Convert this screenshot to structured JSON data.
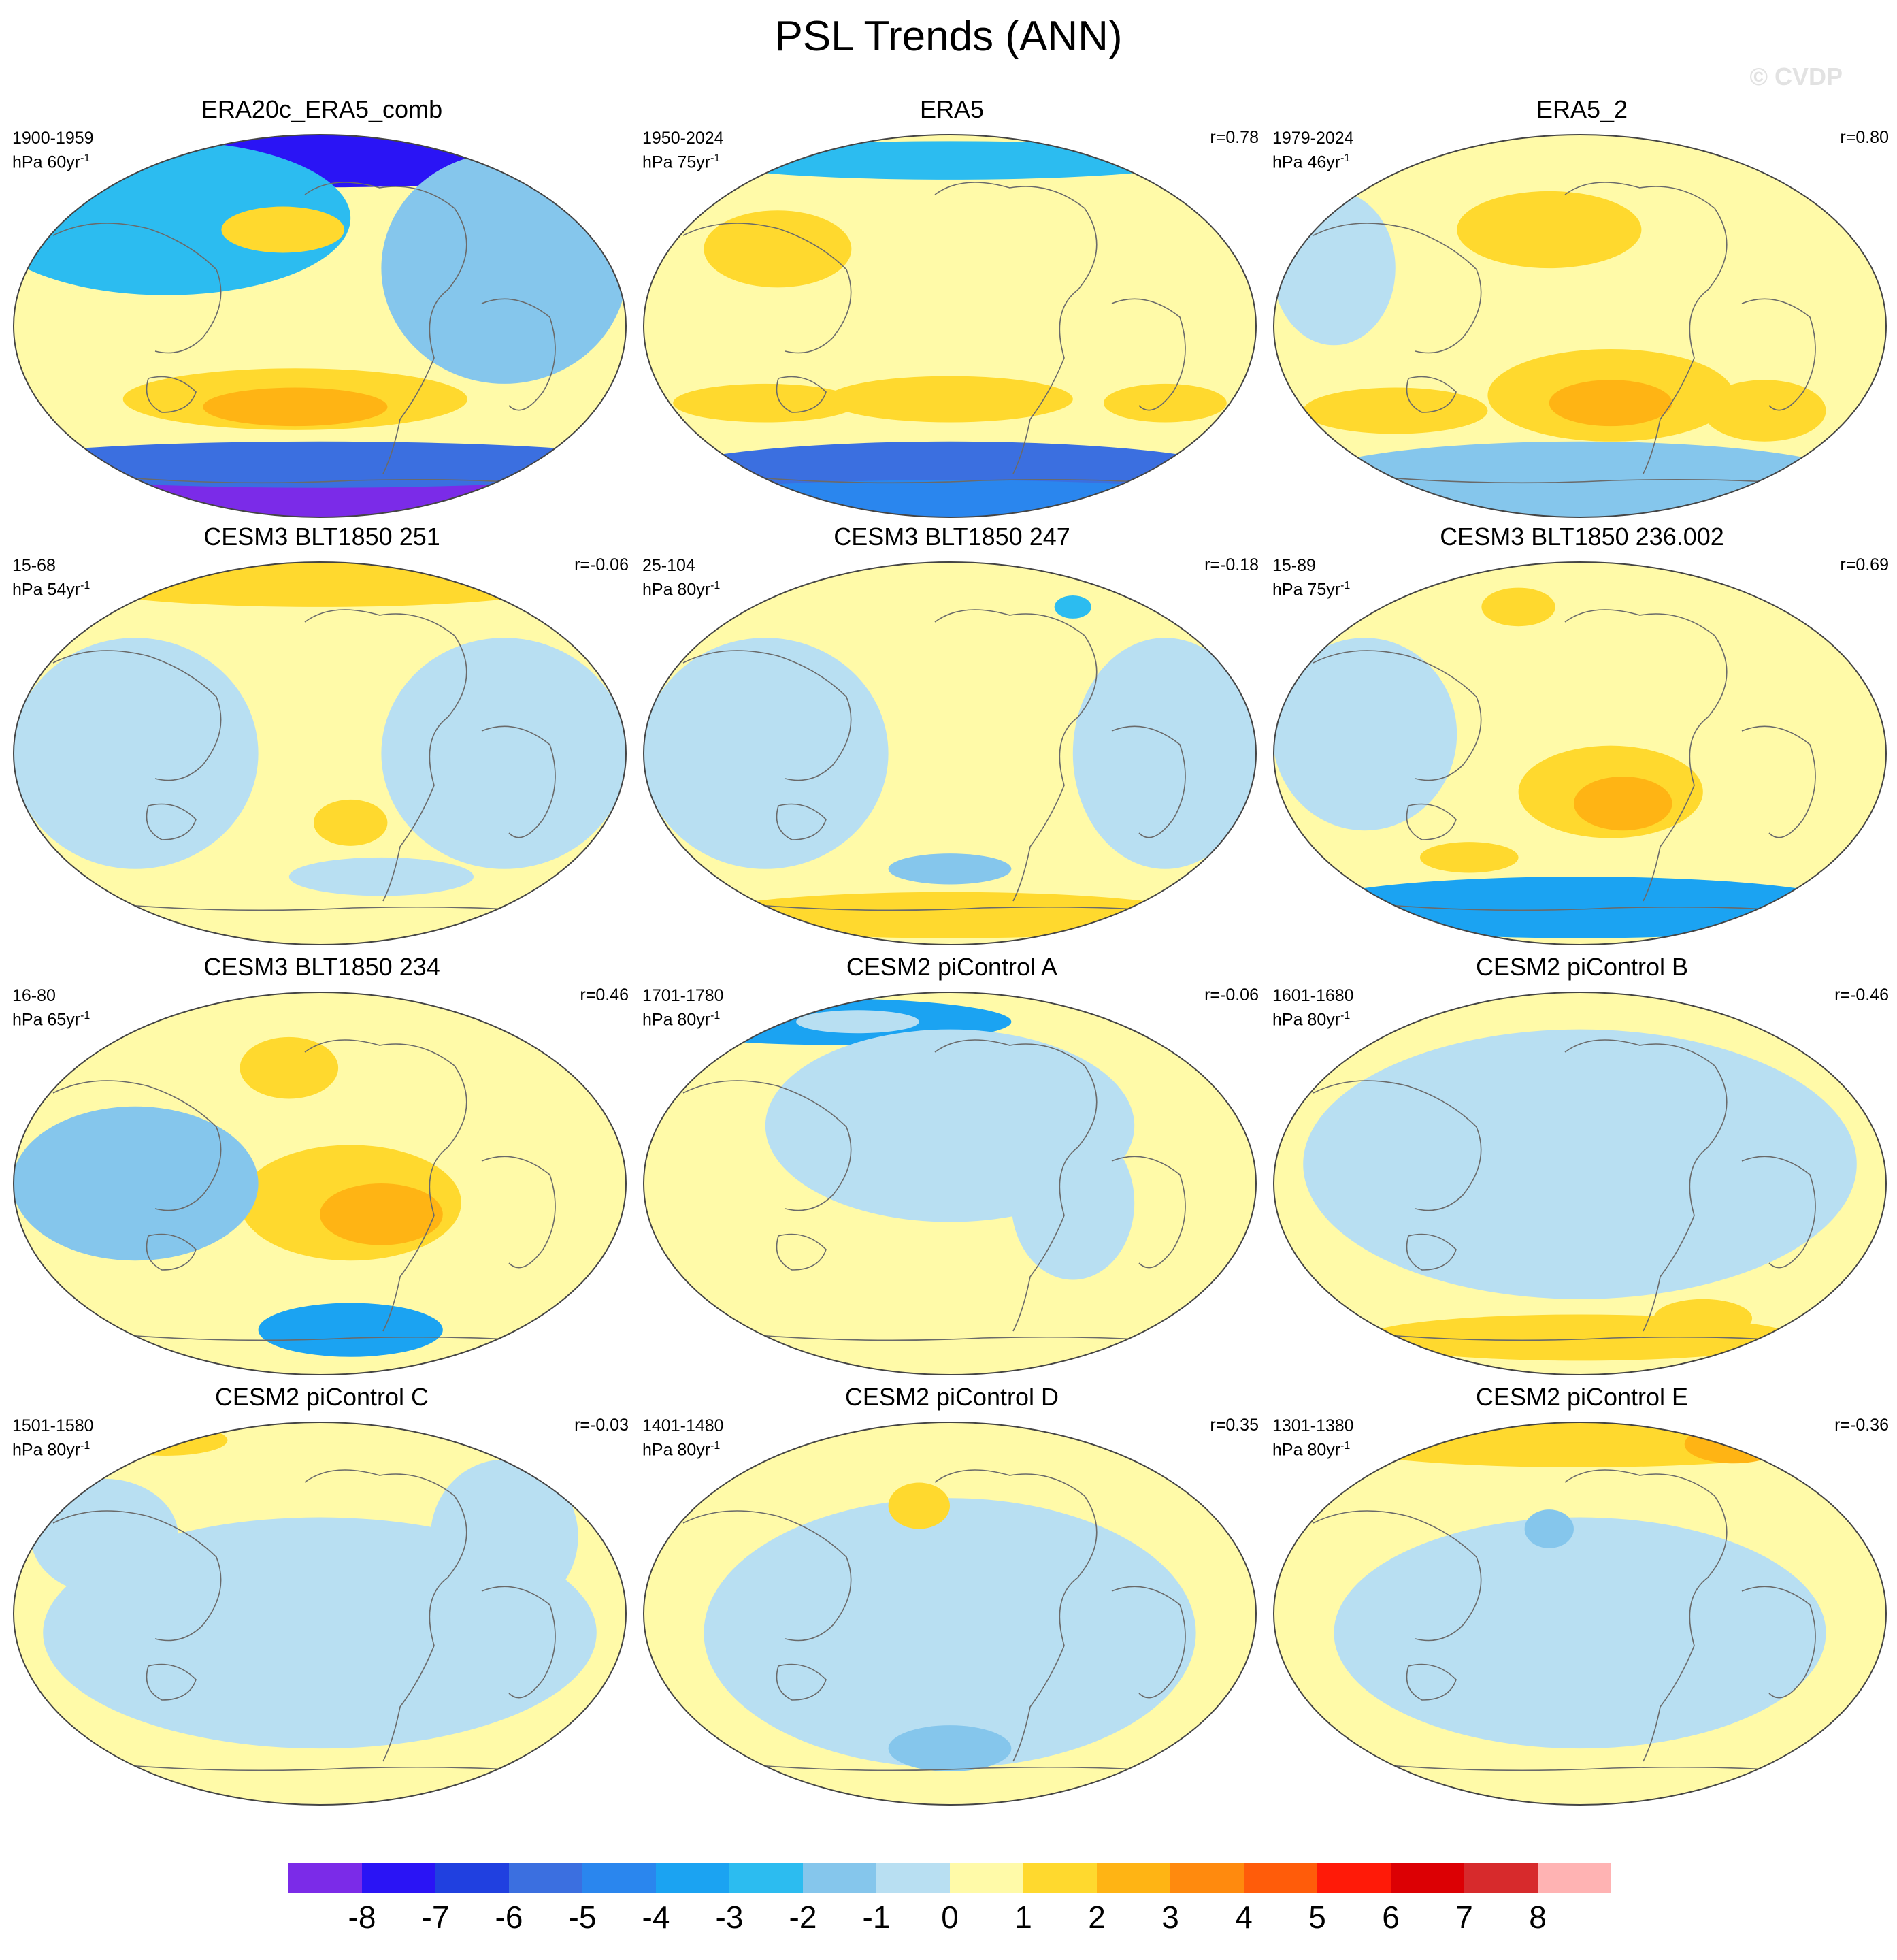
{
  "title": "PSL Trends (ANN)",
  "watermark": "© CVDP",
  "chart_data": {
    "type": "heatmap",
    "projection": "global map (Robinson-like), Pacific-centered",
    "variable": "PSL",
    "units": "hPa",
    "panels": [
      {
        "name": "ERA20c_ERA5_comb",
        "period": "1900-1959",
        "units_label": "hPa 60yr",
        "r": ""
      },
      {
        "name": "ERA5",
        "period": "1950-2024",
        "units_label": "hPa 75yr",
        "r": "r=0.78"
      },
      {
        "name": "ERA5_2",
        "period": "1979-2024",
        "units_label": "hPa 46yr",
        "r": "r=0.80"
      },
      {
        "name": "CESM3 BLT1850 251",
        "period": "15-68",
        "units_label": "hPa 54yr",
        "r": "r=-0.06"
      },
      {
        "name": "CESM3 BLT1850 247",
        "period": "25-104",
        "units_label": "hPa 80yr",
        "r": "r=-0.18"
      },
      {
        "name": "CESM3 BLT1850 236.002",
        "period": "15-89",
        "units_label": "hPa 75yr",
        "r": "r=0.69"
      },
      {
        "name": "CESM3 BLT1850 234",
        "period": "16-80",
        "units_label": "hPa 65yr",
        "r": "r=0.46"
      },
      {
        "name": "CESM2 piControl A",
        "period": "1701-1780",
        "units_label": "hPa 80yr",
        "r": "r=-0.06"
      },
      {
        "name": "CESM2 piControl B",
        "period": "1601-1680",
        "units_label": "hPa 80yr",
        "r": "r=-0.46"
      },
      {
        "name": "CESM2 piControl C",
        "period": "1501-1580",
        "units_label": "hPa 80yr",
        "r": "r=-0.03"
      },
      {
        "name": "CESM2 piControl D",
        "period": "1401-1480",
        "units_label": "hPa 80yr",
        "r": "r=0.35"
      },
      {
        "name": "CESM2 piControl E",
        "period": "1301-1380",
        "units_label": "hPa 80yr",
        "r": "r=-0.36"
      }
    ],
    "colorbar": {
      "labels": [
        "-8",
        "-7",
        "-6",
        "-5",
        "-4",
        "-3",
        "-2",
        "-1",
        "0",
        "1",
        "2",
        "3",
        "4",
        "5",
        "6",
        "7",
        "8"
      ],
      "colors": [
        "#7b2be8",
        "#2a14f5",
        "#2040e0",
        "#3b6fe0",
        "#2a86ee",
        "#1ba3f2",
        "#2cbcf0",
        "#85c6ec",
        "#b8dff2",
        "#fffaa8",
        "#ffd92e",
        "#ffb414",
        "#ff8a0e",
        "#ff5c0a",
        "#ff1a08",
        "#dc0004",
        "#d72a2c",
        "#ffb3b3"
      ]
    }
  }
}
